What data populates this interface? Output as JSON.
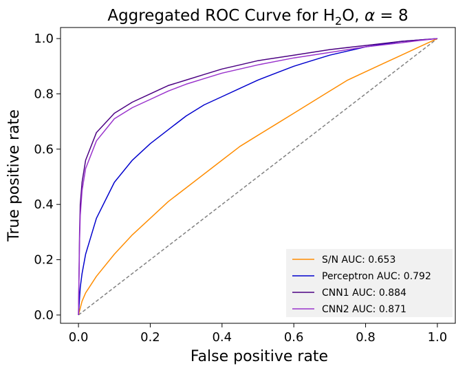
{
  "chart_data": {
    "type": "line",
    "title": {
      "prefix": "Aggregated ROC Curve for H",
      "subscript": "2",
      "mid": "O, ",
      "symbol": "α",
      "suffix": " = 8"
    },
    "xlabel": "False positive rate",
    "ylabel": "True positive rate",
    "xlim": [
      -0.05,
      1.05
    ],
    "ylim": [
      -0.03,
      1.04
    ],
    "xticks": [
      "0.0",
      "0.2",
      "0.4",
      "0.6",
      "0.8",
      "1.0"
    ],
    "yticks": [
      "0.0",
      "0.2",
      "0.4",
      "0.6",
      "0.8",
      "1.0"
    ],
    "grid": false,
    "legend_position": "lower-right",
    "diagonal": {
      "x": [
        0,
        1
      ],
      "y": [
        0,
        1
      ],
      "color": "#808080",
      "style": "dashed"
    },
    "series": [
      {
        "name": "S/N AUC: 0.653",
        "color": "#ff8c00",
        "x": [
          0,
          0.01,
          0.02,
          0.05,
          0.1,
          0.15,
          0.2,
          0.25,
          0.3,
          0.35,
          0.4,
          0.45,
          0.5,
          0.55,
          0.6,
          0.65,
          0.7,
          0.75,
          0.8,
          0.85,
          0.9,
          0.95,
          1.0
        ],
        "y": [
          0,
          0.05,
          0.08,
          0.14,
          0.22,
          0.29,
          0.35,
          0.41,
          0.46,
          0.51,
          0.56,
          0.61,
          0.65,
          0.69,
          0.73,
          0.77,
          0.81,
          0.85,
          0.88,
          0.91,
          0.94,
          0.97,
          1.0
        ]
      },
      {
        "name": "Perceptron AUC: 0.792",
        "color": "#0000cd",
        "x": [
          0,
          0.005,
          0.01,
          0.02,
          0.05,
          0.1,
          0.15,
          0.2,
          0.25,
          0.3,
          0.35,
          0.4,
          0.45,
          0.5,
          0.55,
          0.6,
          0.65,
          0.7,
          0.75,
          0.8,
          0.85,
          0.9,
          0.95,
          1.0
        ],
        "y": [
          0,
          0.1,
          0.15,
          0.22,
          0.35,
          0.48,
          0.56,
          0.62,
          0.67,
          0.72,
          0.76,
          0.79,
          0.82,
          0.85,
          0.875,
          0.9,
          0.92,
          0.94,
          0.955,
          0.97,
          0.98,
          0.99,
          0.995,
          1.0
        ]
      },
      {
        "name": "CNN1 AUC: 0.884",
        "color": "#4b0082",
        "x": [
          0,
          0.003,
          0.005,
          0.01,
          0.02,
          0.05,
          0.1,
          0.15,
          0.2,
          0.25,
          0.3,
          0.35,
          0.4,
          0.45,
          0.5,
          0.6,
          0.7,
          0.8,
          0.9,
          0.95,
          1.0
        ],
        "y": [
          0,
          0.3,
          0.4,
          0.48,
          0.56,
          0.66,
          0.73,
          0.77,
          0.8,
          0.83,
          0.85,
          0.87,
          0.89,
          0.905,
          0.92,
          0.94,
          0.96,
          0.975,
          0.99,
          0.995,
          1.0
        ]
      },
      {
        "name": "CNN2 AUC: 0.871",
        "color": "#9932cc",
        "x": [
          0,
          0.003,
          0.005,
          0.01,
          0.02,
          0.05,
          0.1,
          0.15,
          0.2,
          0.25,
          0.3,
          0.35,
          0.4,
          0.45,
          0.5,
          0.6,
          0.7,
          0.8,
          0.9,
          0.95,
          1.0
        ],
        "y": [
          0,
          0.27,
          0.36,
          0.45,
          0.53,
          0.63,
          0.71,
          0.75,
          0.78,
          0.81,
          0.835,
          0.855,
          0.875,
          0.89,
          0.905,
          0.93,
          0.95,
          0.97,
          0.985,
          0.993,
          1.0
        ]
      }
    ]
  }
}
